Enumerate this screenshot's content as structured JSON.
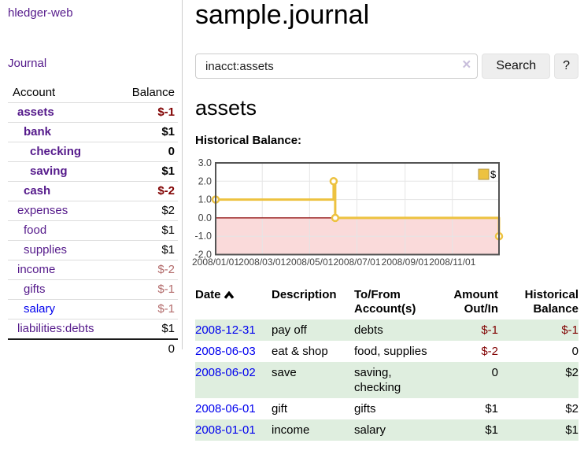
{
  "sidebar": {
    "brand": "hledger-web",
    "journal_link": "Journal",
    "accounts": {
      "header_account": "Account",
      "header_balance": "Balance",
      "rows": [
        {
          "name": "assets",
          "depth": 0,
          "balance": "$-1",
          "bold": true
        },
        {
          "name": "bank",
          "depth": 1,
          "balance": "$1",
          "bold": true
        },
        {
          "name": "checking",
          "depth": 2,
          "balance": "0",
          "bold": true
        },
        {
          "name": "saving",
          "depth": 2,
          "balance": "$1",
          "bold": true
        },
        {
          "name": "cash",
          "depth": 1,
          "balance": "$-2",
          "bold": true
        },
        {
          "name": "expenses",
          "depth": 0,
          "balance": "$2",
          "bold": false
        },
        {
          "name": "food",
          "depth": 1,
          "balance": "$1",
          "bold": false
        },
        {
          "name": "supplies",
          "depth": 1,
          "balance": "$1",
          "bold": false
        },
        {
          "name": "income",
          "depth": 0,
          "balance": "$-2",
          "bold": false
        },
        {
          "name": "gifts",
          "depth": 1,
          "balance": "$-1",
          "bold": false
        },
        {
          "name": "salary",
          "depth": 1,
          "balance": "$-1",
          "bold": false,
          "unvisited": true
        },
        {
          "name": "liabilities:debts",
          "depth": 0,
          "balance": "$1",
          "bold": false
        }
      ],
      "total": "0"
    }
  },
  "main": {
    "title": "sample.journal",
    "search": {
      "value": "inacct:assets",
      "clear_icon": "×",
      "button_label": "Search",
      "help_label": "?"
    },
    "account_heading": "assets",
    "section_label": "Historical Balance:"
  },
  "chart_data": {
    "type": "line",
    "step": true,
    "title": "Historical Balance:",
    "x_range": [
      "2008-01-01",
      "2008-12-31"
    ],
    "ylim": [
      -2.0,
      3.0
    ],
    "yticks": [
      "3.0",
      "2.0",
      "1.0",
      "0.0",
      "-1.0",
      "-2.0"
    ],
    "xticks": [
      "2008/01/01",
      "2008/03/01",
      "2008/05/01",
      "2008/07/01",
      "2008/09/01",
      "2008/11/01"
    ],
    "series": [
      {
        "name": "$",
        "color": "#edc240",
        "points": [
          [
            "2008-01-01",
            1.0
          ],
          [
            "2008-06-01",
            2.0
          ],
          [
            "2008-06-03",
            0.0
          ],
          [
            "2008-12-31",
            -1.0
          ]
        ]
      }
    ],
    "negative_region": {
      "ymax": 0,
      "ymin": -2,
      "color": "#fadada",
      "line_color": "#8b0000"
    },
    "legend": {
      "label": "$",
      "position": "top-right"
    },
    "grid": {
      "line_color": "#e5e5e5",
      "border_color": "#545454",
      "tick_text_color": "#444444"
    }
  },
  "register": {
    "columns": [
      {
        "label": "Date",
        "sort": "asc",
        "align": "left"
      },
      {
        "label": "Description",
        "align": "left"
      },
      {
        "label": "To/From\nAccount(s)",
        "align": "left"
      },
      {
        "label": "Amount\nOut/In",
        "align": "right"
      },
      {
        "label": "Historical\nBalance",
        "align": "right"
      }
    ],
    "rows": [
      {
        "date": "2008-12-31",
        "description": "pay off",
        "accounts": "debts",
        "amount": "$-1",
        "balance": "$-1"
      },
      {
        "date": "2008-06-03",
        "description": "eat & shop",
        "accounts": "food, supplies",
        "amount": "$-2",
        "balance": "0"
      },
      {
        "date": "2008-06-02",
        "description": "save",
        "accounts": "saving, checking",
        "amount": "0",
        "balance": "$2"
      },
      {
        "date": "2008-06-01",
        "description": "gift",
        "accounts": "gifts",
        "amount": "$1",
        "balance": "$2"
      },
      {
        "date": "2008-01-01",
        "description": "income",
        "accounts": "salary",
        "amount": "$1",
        "balance": "$1"
      }
    ],
    "stripe_color": "#dfeedf"
  },
  "colors": {
    "link_purple": "#551a8b",
    "link_blue": "#0000ee",
    "negative_strong": "#800000",
    "negative_soft": "#b36b6b"
  }
}
